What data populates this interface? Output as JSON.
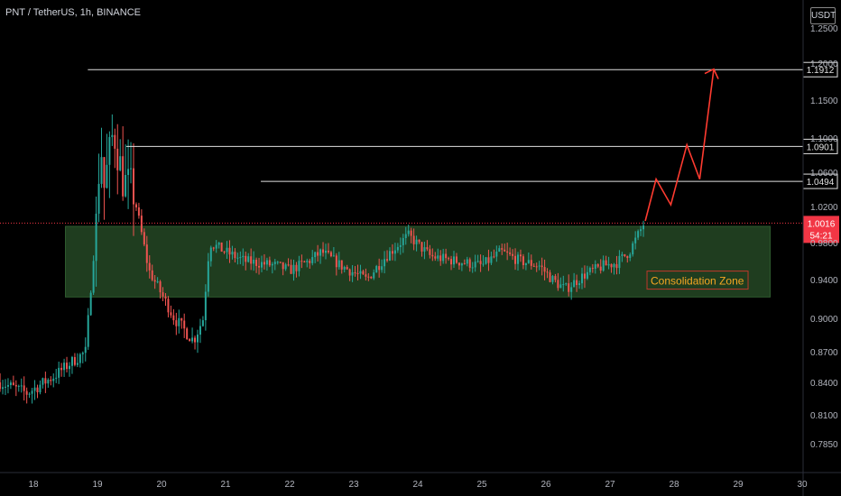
{
  "header": {
    "title": "PNT / TetherUS, 1h, BINANCE",
    "currency": "USDT"
  },
  "colors": {
    "up": "#26a69a",
    "down": "#ef5350",
    "zone_fill": "#1f3d1f",
    "projection": "#ff3b30",
    "price_label_bg": "#f23645"
  },
  "chart_data": {
    "type": "candlestick",
    "title": "PNT / TetherUS, 1h, BINANCE",
    "y_ticks": [
      1.25,
      1.2,
      1.15,
      1.1,
      1.06,
      1.02,
      0.98,
      0.94,
      0.9,
      0.87,
      0.84,
      0.81,
      0.785
    ],
    "y_tick_labels": [
      "1.2500",
      "1.2000",
      "1.1500",
      "1.1000",
      "1.0600",
      "1.0200",
      "0.9800",
      "0.9400",
      "0.9000",
      "0.8700",
      "0.8400",
      "0.8100",
      "0.7850"
    ],
    "x_ticks": [
      "18",
      "19",
      "20",
      "21",
      "22",
      "23",
      "24",
      "25",
      "26",
      "27",
      "28",
      "29",
      "30"
    ],
    "x_tick_days": [
      18,
      19,
      20,
      21,
      22,
      23,
      24,
      25,
      26,
      27,
      28,
      29,
      30
    ],
    "x_range": [
      17.48,
      30.02
    ],
    "key_levels": [
      {
        "value": 1.1912,
        "label": "1.1912",
        "start_day": 18.85
      },
      {
        "value": 1.0901,
        "label": "1.0901",
        "start_day": 19.45
      },
      {
        "value": 1.0494,
        "label": "1.0494",
        "start_day": 21.55
      }
    ],
    "current_price": {
      "value": 1.0016,
      "label": "1.0016",
      "countdown": "54:21"
    },
    "zone": {
      "label": "Consolidation Zone",
      "top": 0.998,
      "bottom": 0.922,
      "start_day": 18.5,
      "end_day": 29.5
    },
    "projection": [
      {
        "day": 27.55,
        "price": 1.004
      },
      {
        "day": 27.72,
        "price": 1.052
      },
      {
        "day": 27.95,
        "price": 1.022
      },
      {
        "day": 28.2,
        "price": 1.092
      },
      {
        "day": 28.4,
        "price": 1.052
      },
      {
        "day": 28.62,
        "price": 1.192
      }
    ],
    "candle_path": [
      [
        17.48,
        0.84
      ],
      [
        17.9,
        0.83
      ],
      [
        18.3,
        0.845
      ],
      [
        18.6,
        0.86
      ],
      [
        18.82,
        0.87
      ],
      [
        18.98,
        1.0
      ],
      [
        19.05,
        1.1
      ],
      [
        19.1,
        1.04
      ],
      [
        19.25,
        1.11
      ],
      [
        19.4,
        1.05
      ],
      [
        19.55,
        1.04
      ],
      [
        19.8,
        0.95
      ],
      [
        20.0,
        0.925
      ],
      [
        20.2,
        0.9
      ],
      [
        20.5,
        0.88
      ],
      [
        20.65,
        0.9
      ],
      [
        20.75,
        0.98
      ],
      [
        21.0,
        0.97
      ],
      [
        21.3,
        0.96
      ],
      [
        21.8,
        0.955
      ],
      [
        22.0,
        0.95
      ],
      [
        22.3,
        0.96
      ],
      [
        22.5,
        0.97
      ],
      [
        22.8,
        0.955
      ],
      [
        23.2,
        0.94
      ],
      [
        23.5,
        0.965
      ],
      [
        23.85,
        0.988
      ],
      [
        24.2,
        0.965
      ],
      [
        24.6,
        0.96
      ],
      [
        25.0,
        0.955
      ],
      [
        25.3,
        0.97
      ],
      [
        25.6,
        0.96
      ],
      [
        25.9,
        0.955
      ],
      [
        26.1,
        0.94
      ],
      [
        26.3,
        0.93
      ],
      [
        26.6,
        0.945
      ],
      [
        26.9,
        0.955
      ],
      [
        27.1,
        0.958
      ],
      [
        27.3,
        0.97
      ],
      [
        27.45,
        0.99
      ],
      [
        27.55,
        1.004
      ]
    ]
  }
}
